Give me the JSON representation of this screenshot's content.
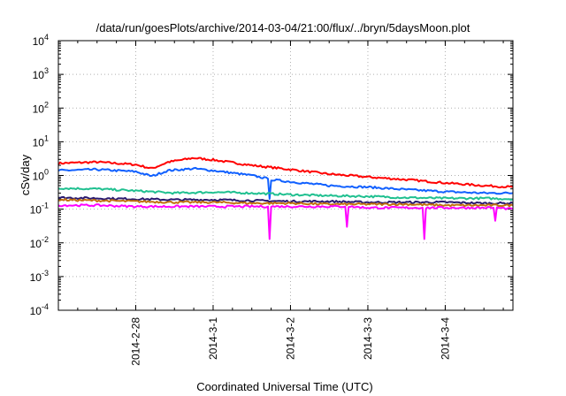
{
  "chart_data": {
    "type": "line",
    "title": "/data/run/goesPlots/archive/2014-03-04/21:00/flux/../bryn/5daysMoon.plot",
    "xlabel": "Coordinated Universal Time (UTC)",
    "ylabel": "cSv/day",
    "y_scale": "log",
    "ylim": [
      0.0001,
      10000
    ],
    "y_ticks": [
      {
        "base": "10",
        "exp": "4",
        "value": 10000
      },
      {
        "base": "10",
        "exp": "3",
        "value": 1000
      },
      {
        "base": "10",
        "exp": "2",
        "value": 100
      },
      {
        "base": "10",
        "exp": "1",
        "value": 10
      },
      {
        "base": "10",
        "exp": "0",
        "value": 1
      },
      {
        "base": "10",
        "exp": "-1",
        "value": 0.1
      },
      {
        "base": "10",
        "exp": "-2",
        "value": 0.01
      },
      {
        "base": "10",
        "exp": "-3",
        "value": 0.001
      },
      {
        "base": "10",
        "exp": "-4",
        "value": 0.0001
      }
    ],
    "xlim": [
      "2014-02-27T00:00",
      "2014-03-04T21:00"
    ],
    "x_ticks": [
      {
        "label": "2014-2-28",
        "value": "2014-02-28T00:00"
      },
      {
        "label": "2014-3-1",
        "value": "2014-03-01T00:00"
      },
      {
        "label": "2014-3-2",
        "value": "2014-03-02T00:00"
      },
      {
        "label": "2014-3-3",
        "value": "2014-03-03T00:00"
      },
      {
        "label": "2014-3-4",
        "value": "2014-03-04T00:00"
      }
    ],
    "grid": true,
    "legend": "none",
    "series": [
      {
        "color": "#ff0000",
        "x": [
          "2014-02-27T00:00",
          "2014-02-27T12:00",
          "2014-02-28T00:00",
          "2014-02-28T05:00",
          "2014-02-28T10:00",
          "2014-02-28T18:00",
          "2014-03-01T00:00",
          "2014-03-01T12:00",
          "2014-03-02T00:00",
          "2014-03-02T12:00",
          "2014-03-03T00:00",
          "2014-03-03T12:00",
          "2014-03-04T00:00",
          "2014-03-04T12:00",
          "2014-03-04T21:00"
        ],
        "y": [
          2.3,
          2.5,
          2.1,
          1.6,
          2.5,
          3.3,
          2.9,
          2.0,
          1.5,
          1.1,
          0.9,
          0.75,
          0.6,
          0.5,
          0.45
        ]
      },
      {
        "color": "#1060ff",
        "x": [
          "2014-02-27T00:00",
          "2014-02-27T12:00",
          "2014-02-28T00:00",
          "2014-02-28T05:00",
          "2014-02-28T10:00",
          "2014-02-28T18:00",
          "2014-03-01T00:00",
          "2014-03-01T12:00",
          "2014-03-01T17:00",
          "2014-03-01T17:30",
          "2014-03-01T18:00",
          "2014-03-02T00:00",
          "2014-03-02T12:00",
          "2014-03-03T00:00",
          "2014-03-03T12:00",
          "2014-03-04T00:00",
          "2014-03-04T12:00",
          "2014-03-04T21:00"
        ],
        "y": [
          1.4,
          1.5,
          1.3,
          0.95,
          1.4,
          1.6,
          1.4,
          1.0,
          0.8,
          0.2,
          0.75,
          0.65,
          0.5,
          0.45,
          0.38,
          0.33,
          0.3,
          0.3
        ]
      },
      {
        "color": "#20c090",
        "x": [
          "2014-02-27T00:00",
          "2014-02-27T12:00",
          "2014-02-28T00:00",
          "2014-02-28T12:00",
          "2014-03-01T00:00",
          "2014-03-01T12:00",
          "2014-03-02T00:00",
          "2014-03-02T12:00",
          "2014-03-03T00:00",
          "2014-03-03T12:00",
          "2014-03-04T00:00",
          "2014-03-04T12:00",
          "2014-03-04T21:00"
        ],
        "y": [
          0.42,
          0.4,
          0.35,
          0.3,
          0.32,
          0.3,
          0.27,
          0.25,
          0.24,
          0.22,
          0.21,
          0.21,
          0.2
        ]
      },
      {
        "color": "#2a1a70",
        "x": [
          "2014-02-27T00:00",
          "2014-02-27T12:00",
          "2014-02-28T00:00",
          "2014-02-28T12:00",
          "2014-03-01T00:00",
          "2014-03-01T12:00",
          "2014-03-02T00:00",
          "2014-03-02T12:00",
          "2014-03-03T00:00",
          "2014-03-03T12:00",
          "2014-03-04T00:00",
          "2014-03-04T12:00",
          "2014-03-04T21:00"
        ],
        "y": [
          0.22,
          0.21,
          0.2,
          0.19,
          0.19,
          0.18,
          0.17,
          0.17,
          0.16,
          0.16,
          0.16,
          0.15,
          0.15
        ]
      },
      {
        "color": "#c07010",
        "x": [
          "2014-02-27T00:00",
          "2014-02-27T12:00",
          "2014-02-28T00:00",
          "2014-02-28T12:00",
          "2014-03-01T00:00",
          "2014-03-01T12:00",
          "2014-03-02T00:00",
          "2014-03-02T12:00",
          "2014-03-03T00:00",
          "2014-03-03T12:00",
          "2014-03-04T00:00",
          "2014-03-04T12:00",
          "2014-03-04T21:00"
        ],
        "y": [
          0.19,
          0.18,
          0.17,
          0.16,
          0.16,
          0.15,
          0.15,
          0.14,
          0.14,
          0.14,
          0.13,
          0.13,
          0.13
        ]
      },
      {
        "color": "#ff00ff",
        "x": [
          "2014-02-27T00:00",
          "2014-02-27T12:00",
          "2014-02-28T00:00",
          "2014-02-28T12:00",
          "2014-03-01T00:00",
          "2014-03-01T12:00",
          "2014-03-01T17:00",
          "2014-03-01T17:30",
          "2014-03-01T18:00",
          "2014-03-02T00:00",
          "2014-03-02T12:00",
          "2014-03-02T17:00",
          "2014-03-02T17:30",
          "2014-03-02T18:00",
          "2014-03-03T00:00",
          "2014-03-03T12:00",
          "2014-03-03T17:00",
          "2014-03-03T17:30",
          "2014-03-03T18:00",
          "2014-03-04T00:00",
          "2014-03-04T12:00",
          "2014-03-04T15:00",
          "2014-03-04T15:30",
          "2014-03-04T16:00",
          "2014-03-04T21:00"
        ],
        "y": [
          0.13,
          0.13,
          0.12,
          0.12,
          0.12,
          0.12,
          0.12,
          0.013,
          0.12,
          0.12,
          0.12,
          0.12,
          0.03,
          0.12,
          0.11,
          0.11,
          0.11,
          0.013,
          0.11,
          0.11,
          0.11,
          0.11,
          0.045,
          0.11,
          0.1
        ]
      }
    ]
  }
}
